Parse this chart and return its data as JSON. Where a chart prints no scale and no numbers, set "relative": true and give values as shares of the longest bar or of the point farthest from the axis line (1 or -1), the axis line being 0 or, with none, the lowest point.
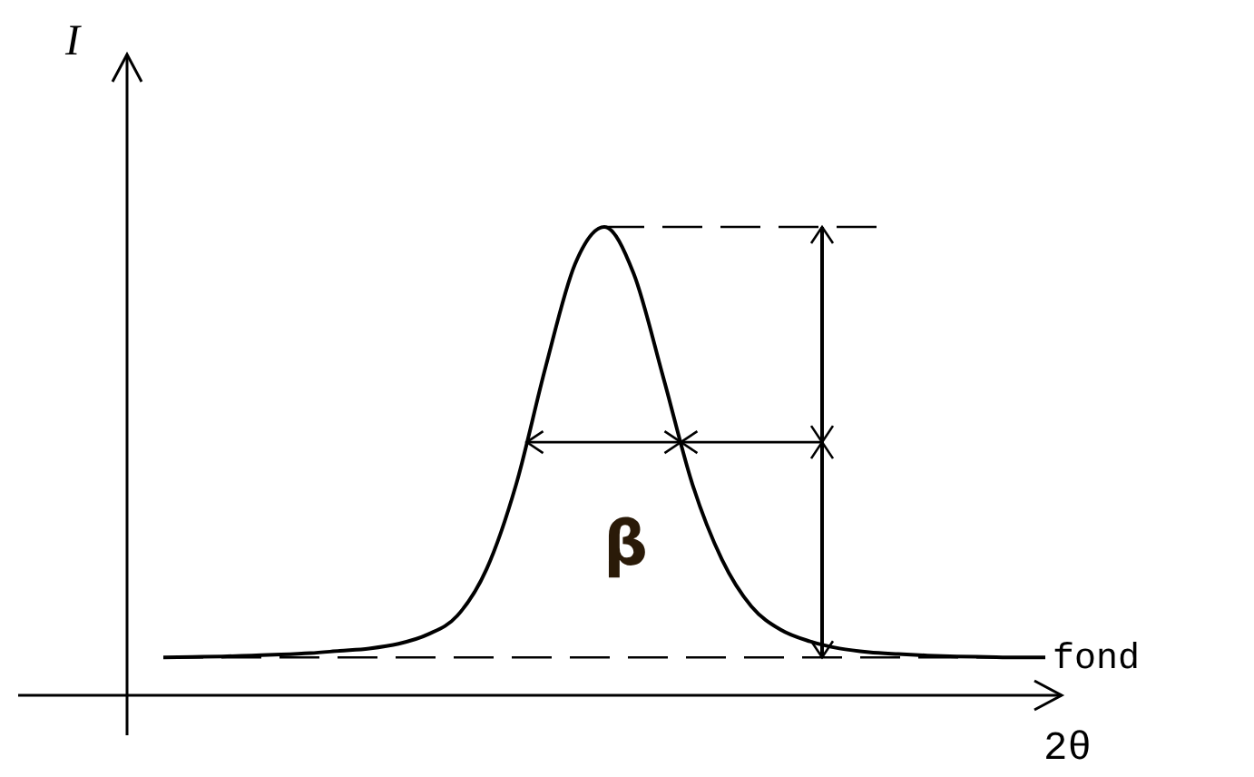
{
  "chart_data": {
    "type": "line",
    "relative": true,
    "xlabel": "2θ",
    "ylabel": "I",
    "line_style": "solid",
    "categories": [
      null,
      null,
      null,
      null,
      null,
      null,
      null,
      null,
      null,
      null,
      null,
      null,
      null,
      null,
      null,
      null,
      null,
      null,
      null,
      null,
      null,
      null,
      null,
      null,
      null,
      null,
      null,
      null,
      null,
      null,
      null
    ],
    "series": [
      {
        "color": "#000000",
        "values": [
          0.081,
          0.082,
          0.083,
          0.085,
          0.087,
          0.09,
          0.095,
          0.1,
          0.11,
          0.13,
          0.17,
          0.27,
          0.45,
          0.7,
          0.92,
          1.0,
          0.9,
          0.68,
          0.45,
          0.29,
          0.19,
          0.14,
          0.115,
          0.1,
          0.092,
          0.088,
          0.085,
          0.083,
          0.082,
          0.081,
          0.081
        ]
      }
    ],
    "ref_lines": [
      {
        "axis": "y",
        "value": 0.081,
        "label": "fond",
        "line_style": "dashed",
        "color": "#000000"
      }
    ],
    "annotations": [
      "β"
    ]
  }
}
